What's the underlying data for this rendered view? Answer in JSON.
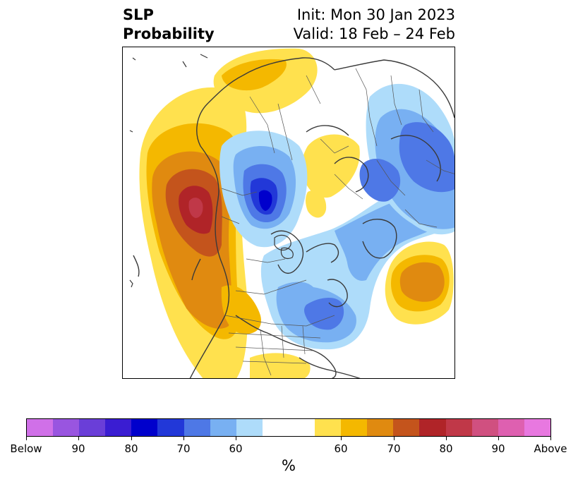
{
  "header": {
    "title_line1": "SLP",
    "title_line2": "Probability",
    "init_label": "Init: Mon 30 Jan 2023",
    "valid_label": "Valid: 18 Feb – 24 Feb"
  },
  "map": {
    "projection": "north-polar-stereographic",
    "features": [
      "coastlines",
      "country-borders",
      "state-borders"
    ],
    "anomalies": [
      {
        "region": "north-pacific-west-of-north-america",
        "category": "above",
        "peak_percent": 85
      },
      {
        "region": "western-us-and-mexico",
        "category": "above",
        "peak_percent": 70
      },
      {
        "region": "eastern-atlantic",
        "category": "above",
        "peak_percent": 70
      },
      {
        "region": "northern-canada-hudson-bay",
        "category": "below",
        "peak_percent": 80
      },
      {
        "region": "eastern-us",
        "category": "below",
        "peak_percent": 70
      },
      {
        "region": "northern-eurasia-siberia",
        "category": "below",
        "peak_percent": 70
      }
    ]
  },
  "colorbar": {
    "label": "%",
    "below_colors": [
      "#d070e8",
      "#9955e0",
      "#6a3ed8",
      "#3a1dd2",
      "#0000cc",
      "#2238d8",
      "#4e78e6",
      "#78b0f2",
      "#aedcfa"
    ],
    "neutral_color": "#ffffff",
    "above_colors": [
      "#ffe14e",
      "#f4b800",
      "#e08a10",
      "#c4541c",
      "#b02428",
      "#c03848",
      "#d05080",
      "#de60b0",
      "#e878e0"
    ],
    "ticks": [
      "Below",
      "90",
      "80",
      "70",
      "60",
      "60",
      "70",
      "80",
      "90",
      "Above"
    ]
  }
}
